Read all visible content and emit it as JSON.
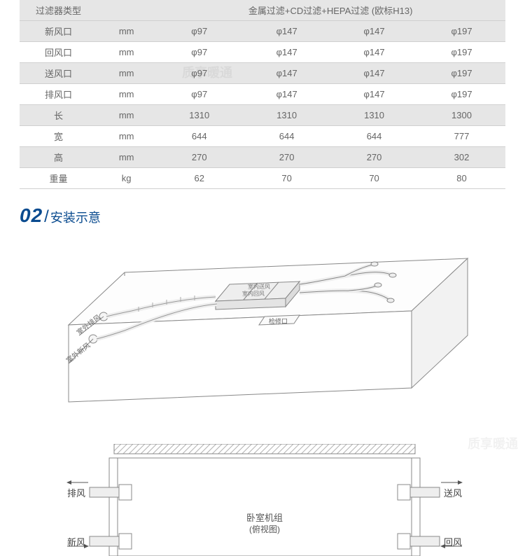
{
  "table": {
    "header": {
      "filter_type_label": "过滤器类型",
      "filter_desc": "金属过滤+CD过滤+HEPA过滤 (欧标H13)"
    },
    "rows": [
      {
        "label": "新风口",
        "unit": "mm",
        "v": [
          "φ97",
          "φ147",
          "φ147",
          "φ197"
        ],
        "alt": true
      },
      {
        "label": "回风口",
        "unit": "mm",
        "v": [
          "φ97",
          "φ147",
          "φ147",
          "φ197"
        ],
        "alt": false
      },
      {
        "label": "送风口",
        "unit": "mm",
        "v": [
          "φ97",
          "φ147",
          "φ147",
          "φ197"
        ],
        "alt": true
      },
      {
        "label": "排风口",
        "unit": "mm",
        "v": [
          "φ97",
          "φ147",
          "φ147",
          "φ197"
        ],
        "alt": false
      },
      {
        "label": "长",
        "unit": "mm",
        "v": [
          "1310",
          "1310",
          "1310",
          "1300"
        ],
        "alt": true
      },
      {
        "label": "宽",
        "unit": "mm",
        "v": [
          "644",
          "644",
          "644",
          "777"
        ],
        "alt": false
      },
      {
        "label": "高",
        "unit": "mm",
        "v": [
          "270",
          "270",
          "270",
          "302"
        ],
        "alt": true
      },
      {
        "label": "重量",
        "unit": "kg",
        "v": [
          "62",
          "70",
          "70",
          "80"
        ],
        "alt": false
      }
    ],
    "colors": {
      "row_alt_bg": "#e6e6e6",
      "border": "#d0d0d0",
      "text": "#666666"
    }
  },
  "section": {
    "number": "02",
    "title": "安装示意",
    "accent_color": "#0a4b8f"
  },
  "iso": {
    "labels": {
      "outdoor_exhaust": "室外排风",
      "outdoor_fresh": "室外新风",
      "indoor_supply": "室内送风",
      "indoor_return": "室内回风",
      "access_panel": "检修口"
    },
    "stroke": "#888888",
    "fill_light": "#f5f5f5",
    "fill_unit": "#eeeeee",
    "line_width": 1
  },
  "plan": {
    "labels": {
      "exhaust": "排风",
      "fresh": "新风",
      "supply": "送风",
      "return": "回风",
      "unit_caption_1": "卧室机组",
      "unit_caption_2": "(俯视图)"
    },
    "stroke": "#888888",
    "hatch": "#b0b0b0",
    "arrow": "#555555",
    "duct_fill": "#eeeeee"
  },
  "watermark": "质享暖通"
}
